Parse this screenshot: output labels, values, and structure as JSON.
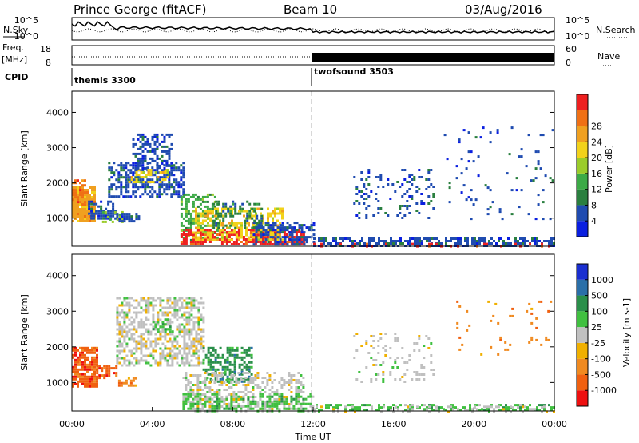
{
  "header": {
    "station": "Prince George (fitACF)",
    "beam": "Beam 10",
    "date": "03/Aug/2016"
  },
  "strip_labels": {
    "nsky": "N.Sky",
    "nsearch": "N.Search",
    "freq_top": "Freq.",
    "freq_unit": "[MHz]",
    "nave": "Nave",
    "cpid": "CPID"
  },
  "strip_ticks": {
    "noise_left": [
      "10^5",
      "10^0"
    ],
    "noise_right": [
      "10^5",
      "10^0"
    ],
    "freq_left": [
      "18",
      "8"
    ],
    "nave_right": [
      "60",
      "0"
    ]
  },
  "cpid_labels": [
    "themis 3300",
    "twofsound 3503"
  ],
  "colors": {
    "line": "#000000",
    "dashed": "#b0b0b0"
  },
  "chart_data": [
    {
      "type": "heatmap",
      "panel": "power",
      "ylabel": "Slant Range [km]",
      "y_ticks": [
        "1000",
        "2000",
        "3000",
        "4000"
      ],
      "ylim": [
        200,
        4600
      ],
      "xlim": [
        0,
        24
      ],
      "colorbar": {
        "label": "Power [dB]",
        "ticks": [
          "4",
          "8",
          "12",
          "16",
          "20",
          "24",
          "28"
        ],
        "colors": [
          "#0a1fe0",
          "#1f4bb0",
          "#2a7f3f",
          "#3caa46",
          "#9bcc2a",
          "#f2d21a",
          "#f0a020",
          "#f07015",
          "#ee2020"
        ]
      },
      "scatter_regions": [
        {
          "x": [
            0.0,
            1.1
          ],
          "y": [
            900,
            1900
          ],
          "c": 6,
          "d": 0.9
        },
        {
          "x": [
            0.0,
            0.6
          ],
          "y": [
            1400,
            2100
          ],
          "c": 7,
          "d": 0.6
        },
        {
          "x": [
            0.8,
            2.2
          ],
          "y": [
            1000,
            1500
          ],
          "c": 1,
          "d": 0.5
        },
        {
          "x": [
            1.8,
            5.6
          ],
          "y": [
            1600,
            2600
          ],
          "c": 1,
          "d": 0.55
        },
        {
          "x": [
            2.8,
            4.8
          ],
          "y": [
            2000,
            2400
          ],
          "c": 5,
          "d": 0.4
        },
        {
          "x": [
            3.0,
            5.0
          ],
          "y": [
            2400,
            3400
          ],
          "c": 1,
          "d": 0.4
        },
        {
          "x": [
            1.5,
            2.5
          ],
          "y": [
            900,
            1200
          ],
          "c": 4,
          "d": 0.5
        },
        {
          "x": [
            2.2,
            3.3
          ],
          "y": [
            900,
            1150
          ],
          "c": 1,
          "d": 0.6
        },
        {
          "x": [
            5.4,
            7.2
          ],
          "y": [
            400,
            1700
          ],
          "c": 3,
          "d": 0.45
        },
        {
          "x": [
            5.4,
            11.5
          ],
          "y": [
            250,
            700
          ],
          "c": 8,
          "d": 0.7
        },
        {
          "x": [
            6.0,
            10.5
          ],
          "y": [
            400,
            1300
          ],
          "c": 5,
          "d": 0.45
        },
        {
          "x": [
            7.0,
            9.5
          ],
          "y": [
            700,
            1500
          ],
          "c": 2,
          "d": 0.3
        },
        {
          "x": [
            9.0,
            12.0
          ],
          "y": [
            250,
            900
          ],
          "c": 1,
          "d": 0.5
        },
        {
          "x": [
            12.0,
            24.0
          ],
          "y": [
            200,
            450
          ],
          "c": 1,
          "d": 0.6
        },
        {
          "x": [
            12.0,
            24.0
          ],
          "y": [
            200,
            300
          ],
          "c": 8,
          "d": 0.15
        },
        {
          "x": [
            14.0,
            18.0
          ],
          "y": [
            1000,
            2400
          ],
          "c": 1,
          "d": 0.15
        },
        {
          "x": [
            18.5,
            24.0
          ],
          "y": [
            1000,
            3600
          ],
          "c": 1,
          "d": 0.05
        }
      ]
    },
    {
      "type": "heatmap",
      "panel": "velocity",
      "ylabel": "Slant Range [km]",
      "y_ticks": [
        "1000",
        "2000",
        "3000",
        "4000"
      ],
      "ylim": [
        200,
        4600
      ],
      "xlim": [
        0,
        24
      ],
      "x_ticks": [
        "00:00",
        "04:00",
        "08:00",
        "12:00",
        "16:00",
        "20:00",
        "00:00"
      ],
      "xlabel": "Time UT",
      "colorbar": {
        "label": "Velocity [m s-1]",
        "ticks": [
          "-1000",
          "-500",
          "-100",
          "-25",
          "25",
          "100",
          "500",
          "1000"
        ],
        "colors": [
          "#ee1010",
          "#f06010",
          "#f08a20",
          "#f0b000",
          "#c0c0c0",
          "#40c040",
          "#2a8f4a",
          "#2a6fa8",
          "#1a2fd0"
        ]
      },
      "scatter_regions": [
        {
          "x": [
            0.0,
            1.3
          ],
          "y": [
            900,
            2000
          ],
          "c": 1,
          "d": 0.8
        },
        {
          "x": [
            1.2,
            2.2
          ],
          "y": [
            1100,
            1500
          ],
          "c": 1,
          "d": 0.6
        },
        {
          "x": [
            2.3,
            3.2
          ],
          "y": [
            900,
            1150
          ],
          "c": 2,
          "d": 0.6
        },
        {
          "x": [
            2.2,
            6.5
          ],
          "y": [
            1500,
            3400
          ],
          "c": 4,
          "d": 0.55
        },
        {
          "x": [
            4.0,
            5.0
          ],
          "y": [
            2400,
            2800
          ],
          "c": 5,
          "d": 0.3
        },
        {
          "x": [
            6.5,
            9.0
          ],
          "y": [
            1000,
            2000
          ],
          "c": 6,
          "d": 0.5
        },
        {
          "x": [
            5.5,
            11.5
          ],
          "y": [
            250,
            1300
          ],
          "c": 4,
          "d": 0.45
        },
        {
          "x": [
            5.5,
            12.0
          ],
          "y": [
            200,
            700
          ],
          "c": 5,
          "d": 0.45
        },
        {
          "x": [
            12.0,
            24.0
          ],
          "y": [
            200,
            400
          ],
          "c": 5,
          "d": 0.5
        },
        {
          "x": [
            12.0,
            24.0
          ],
          "y": [
            200,
            350
          ],
          "c": 4,
          "d": 0.25
        },
        {
          "x": [
            14.0,
            18.0
          ],
          "y": [
            1000,
            2400
          ],
          "c": 4,
          "d": 0.12
        },
        {
          "x": [
            19.0,
            24.0
          ],
          "y": [
            1800,
            3300
          ],
          "c": 2,
          "d": 0.05
        }
      ]
    }
  ]
}
